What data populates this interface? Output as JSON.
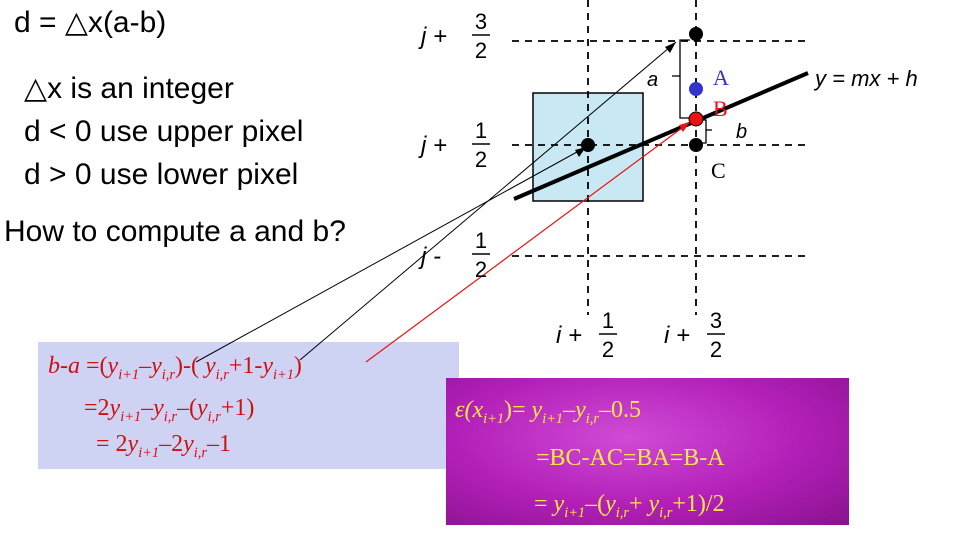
{
  "left_text": {
    "line1": "d = △x(a-b)",
    "line2": "△x is an integer",
    "line3": "d < 0 use upper pixel",
    "line4": "d > 0 use lower pixel",
    "question": "How to compute a and b?"
  },
  "diagram_labels": {
    "row_top": "j + 3/2",
    "row_mid": "j + 1/2",
    "row_bot": "j - 1/2",
    "col_left": "i + 1/2",
    "col_right": "i + 3/2",
    "line_eq": "y = mx + h",
    "A": "A",
    "B": "B",
    "C": "C",
    "a": "a",
    "b": "b"
  },
  "blue_box": {
    "l1_pre": "b-a",
    "l1_eq": " =(",
    "l1_y1": "y",
    "l1_s1": "i+1",
    "l1_minus": "–",
    "l1_y2": "y",
    "l1_s2": "i,r",
    "l1_mid": ")-( ",
    "l1_y3": "y",
    "l1_s3": "i,r",
    "l1_plus": "+1-",
    "l1_y4": "y",
    "l1_s4": "i+1",
    "l1_end": ")",
    "l2_a": "=2",
    "l2_y1": "y",
    "l2_s1": "i+1",
    "l2_m": "–",
    "l2_y2": "y",
    "l2_s2": "i,r",
    "l2_b": "–(",
    "l2_y3": "y",
    "l2_s3": "i,r",
    "l2_c": "+1)",
    "l3_a": "= 2",
    "l3_y1": "y",
    "l3_s1": "i+1",
    "l3_b": "–2",
    "l3_y2": "y",
    "l3_s2": "i,r",
    "l3_c": "–1"
  },
  "mag_box": {
    "m1_eps": "ε(",
    "m1_x": "x",
    "m1_xs": "i+1",
    "m1_eq": ")= ",
    "m1_y1": "y",
    "m1_s1": "i+1",
    "m1_m": "–",
    "m1_y2": "y",
    "m1_s2": "i,r",
    "m1_end": "–0.5",
    "m2": "=BC-AC=BA=B-A",
    "m3_a": "= ",
    "m3_y1": "y",
    "m3_s1": "i+1",
    "m3_b": "–(",
    "m3_y2": "y",
    "m3_s2": "i,r",
    "m3_c": "+ ",
    "m3_y3": "y",
    "m3_s3": "i,r",
    "m3_d": "+1)/2"
  },
  "colors": {
    "pixel_box": "#c8e9f3",
    "blue_box": "#cfd3f3",
    "magenta_box": "#b21fb8",
    "point_A": "#3333cc",
    "point_B": "#ee1111",
    "formula_red": "#cc1111",
    "formula_yellow": "#ffe84a"
  }
}
